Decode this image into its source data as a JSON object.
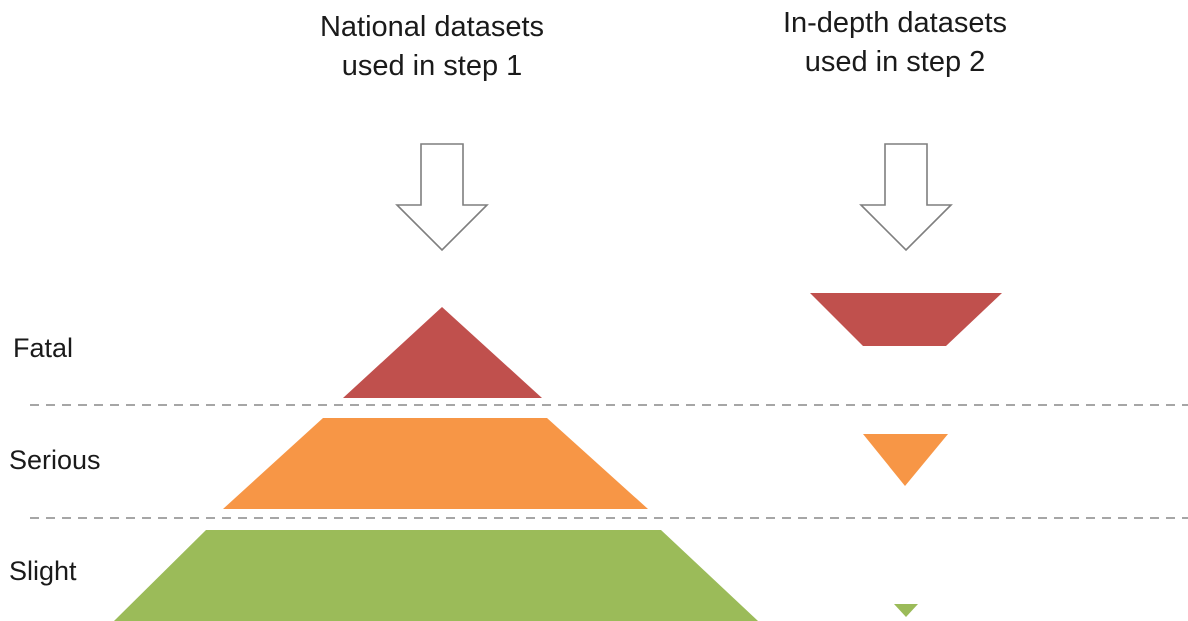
{
  "headings": {
    "national": [
      "National datasets",
      "used in step 1"
    ],
    "in_depth": [
      "In-depth datasets",
      "used in step 2"
    ]
  },
  "levels": [
    {
      "label": "Fatal"
    },
    {
      "label": "Serious"
    },
    {
      "label": "Slight"
    }
  ],
  "colors": {
    "fatal": "#c0504d",
    "serious": "#f79646",
    "slight": "#9bbb59",
    "arrow_outline": "#7f7f7f",
    "divider": "#a6a6a6",
    "text": "#1a1a1a"
  },
  "icons": {
    "arrow": "down-arrow-outline-icon"
  }
}
